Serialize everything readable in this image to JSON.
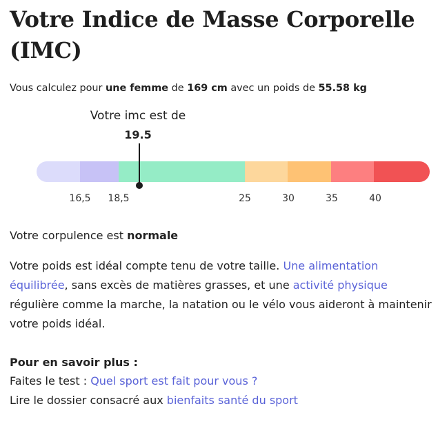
{
  "title": "Votre Indice de Masse Corporelle (IMC)",
  "intro": {
    "prefix": "Vous calculez pour ",
    "gender": "une femme",
    "mid1": " de ",
    "height": "169 cm",
    "mid2": " avec un poids de ",
    "weight": "55.58 kg"
  },
  "gauge": {
    "label": "Votre imc est de",
    "value": "19.5",
    "ticks": [
      "16,5",
      "18,5",
      "25",
      "30",
      "35",
      "40"
    ],
    "colors": {
      "very_underweight": "#dcdcfb",
      "underweight": "#c7c2f6",
      "normal": "#95ecc6",
      "overweight": "#fdd79c",
      "obesity_1": "#fec274",
      "obesity_2": "#fd7f80",
      "obesity_3": "#f15254"
    }
  },
  "verdict": {
    "prefix": "Votre corpulence est ",
    "value": "normale"
  },
  "description": {
    "part1": "Votre poids est idéal compte tenu de votre taille. ",
    "link1": "Une alimentation équilibrée",
    "part2": ", sans excès de matières grasses, et une ",
    "link2": "activité physique",
    "part3": " régulière comme la marche, la natation ou le vélo vous aideront à maintenir votre poids idéal."
  },
  "more": {
    "title": "Pour en savoir plus :",
    "line1_prefix": "Faites le test : ",
    "line1_link": "Quel sport est fait pour vous ?",
    "line2_prefix": "Lire le dossier consacré aux ",
    "line2_link": "bienfaits santé du sport"
  },
  "link_color": "#5a63d8"
}
